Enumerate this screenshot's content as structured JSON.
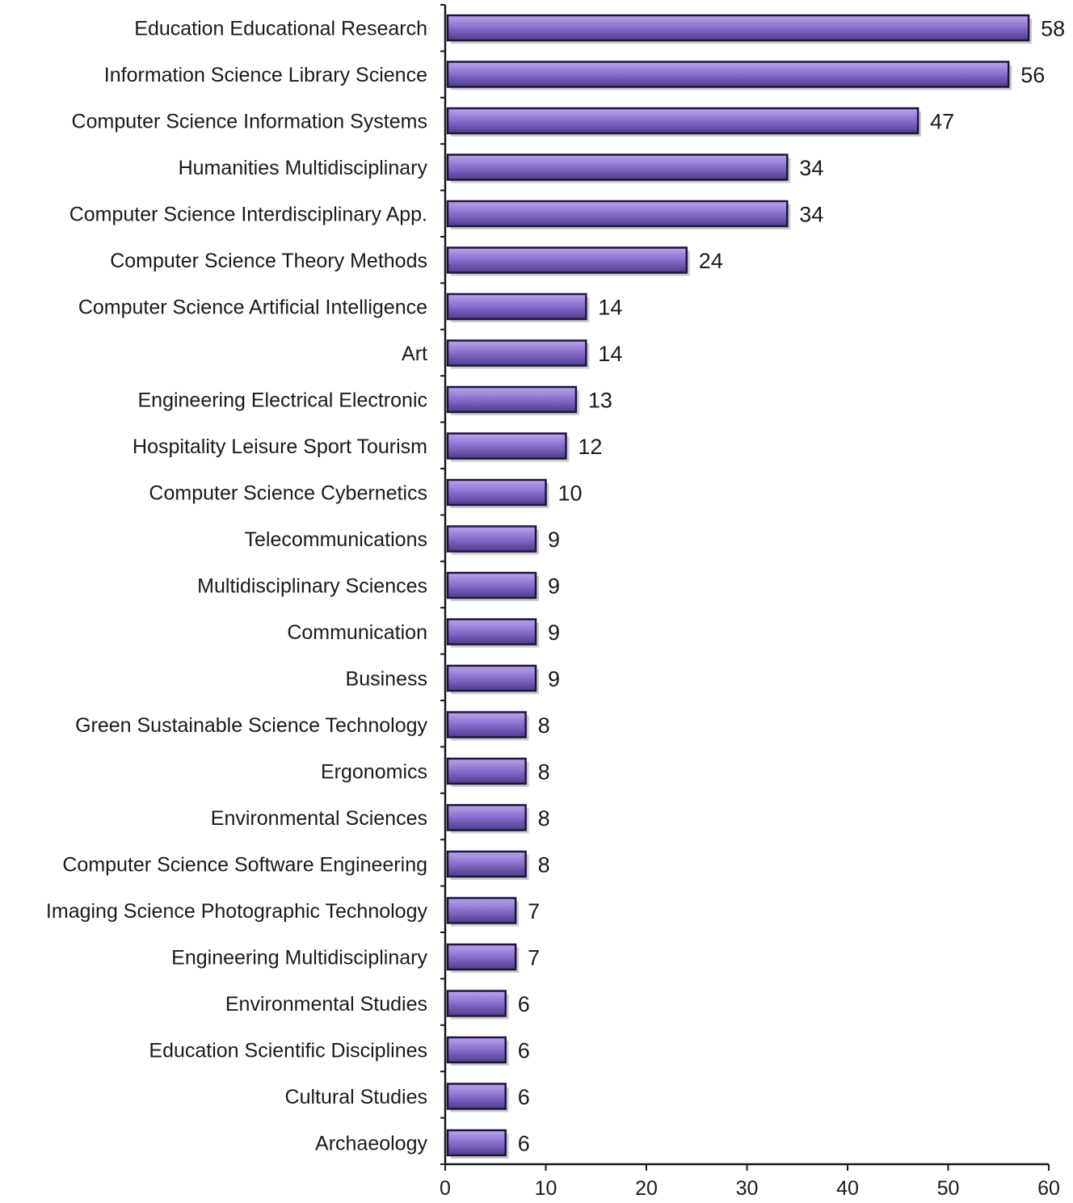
{
  "chart_data": {
    "type": "bar",
    "orientation": "horizontal",
    "categories": [
      "Education Educational Research",
      "Information Science Library Science",
      "Computer Science Information Systems",
      "Humanities Multidisciplinary",
      "Computer Science Interdisciplinary App.",
      "Computer Science Theory Methods",
      "Computer Science Artificial Intelligence",
      "Art",
      "Engineering Electrical Electronic",
      "Hospitality Leisure Sport Tourism",
      "Computer Science Cybernetics",
      "Telecommunications",
      "Multidisciplinary Sciences",
      "Communication",
      "Business",
      "Green Sustainable Science Technology",
      "Ergonomics",
      "Environmental Sciences",
      "Computer Science Software Engineering",
      "Imaging Science Photographic Technology",
      "Engineering Multidisciplinary",
      "Environmental Studies",
      "Education Scientific Disciplines",
      "Cultural Studies",
      "Archaeology"
    ],
    "values": [
      58,
      56,
      47,
      34,
      34,
      24,
      14,
      14,
      13,
      12,
      10,
      9,
      9,
      9,
      9,
      8,
      8,
      8,
      8,
      7,
      7,
      6,
      6,
      6,
      6
    ],
    "value_labels": [
      "58",
      "56",
      "47",
      "34",
      "34",
      "24",
      "14",
      "14",
      "13",
      "12",
      "10",
      "9",
      "9",
      "9",
      "9",
      "8",
      "8",
      "8",
      "8",
      "7",
      "7",
      "6",
      "6",
      "6",
      "6"
    ],
    "xticks": [
      0,
      10,
      20,
      30,
      40,
      50,
      60
    ],
    "xtick_labels": [
      "0",
      "10",
      "20",
      "30",
      "40",
      "50",
      "60"
    ],
    "xlim": [
      0,
      60
    ],
    "title": "",
    "xlabel": "",
    "ylabel": "",
    "grid": false,
    "legend": "none",
    "colors": {
      "bar_top": "#b9a6e6",
      "bar_mid": "#8e72d2",
      "bar_bottom": "#4f3a8c",
      "bar_stroke": "#1e1440",
      "bar_shadow": "#a0a0a0",
      "axis": "#1a1a1a"
    }
  }
}
